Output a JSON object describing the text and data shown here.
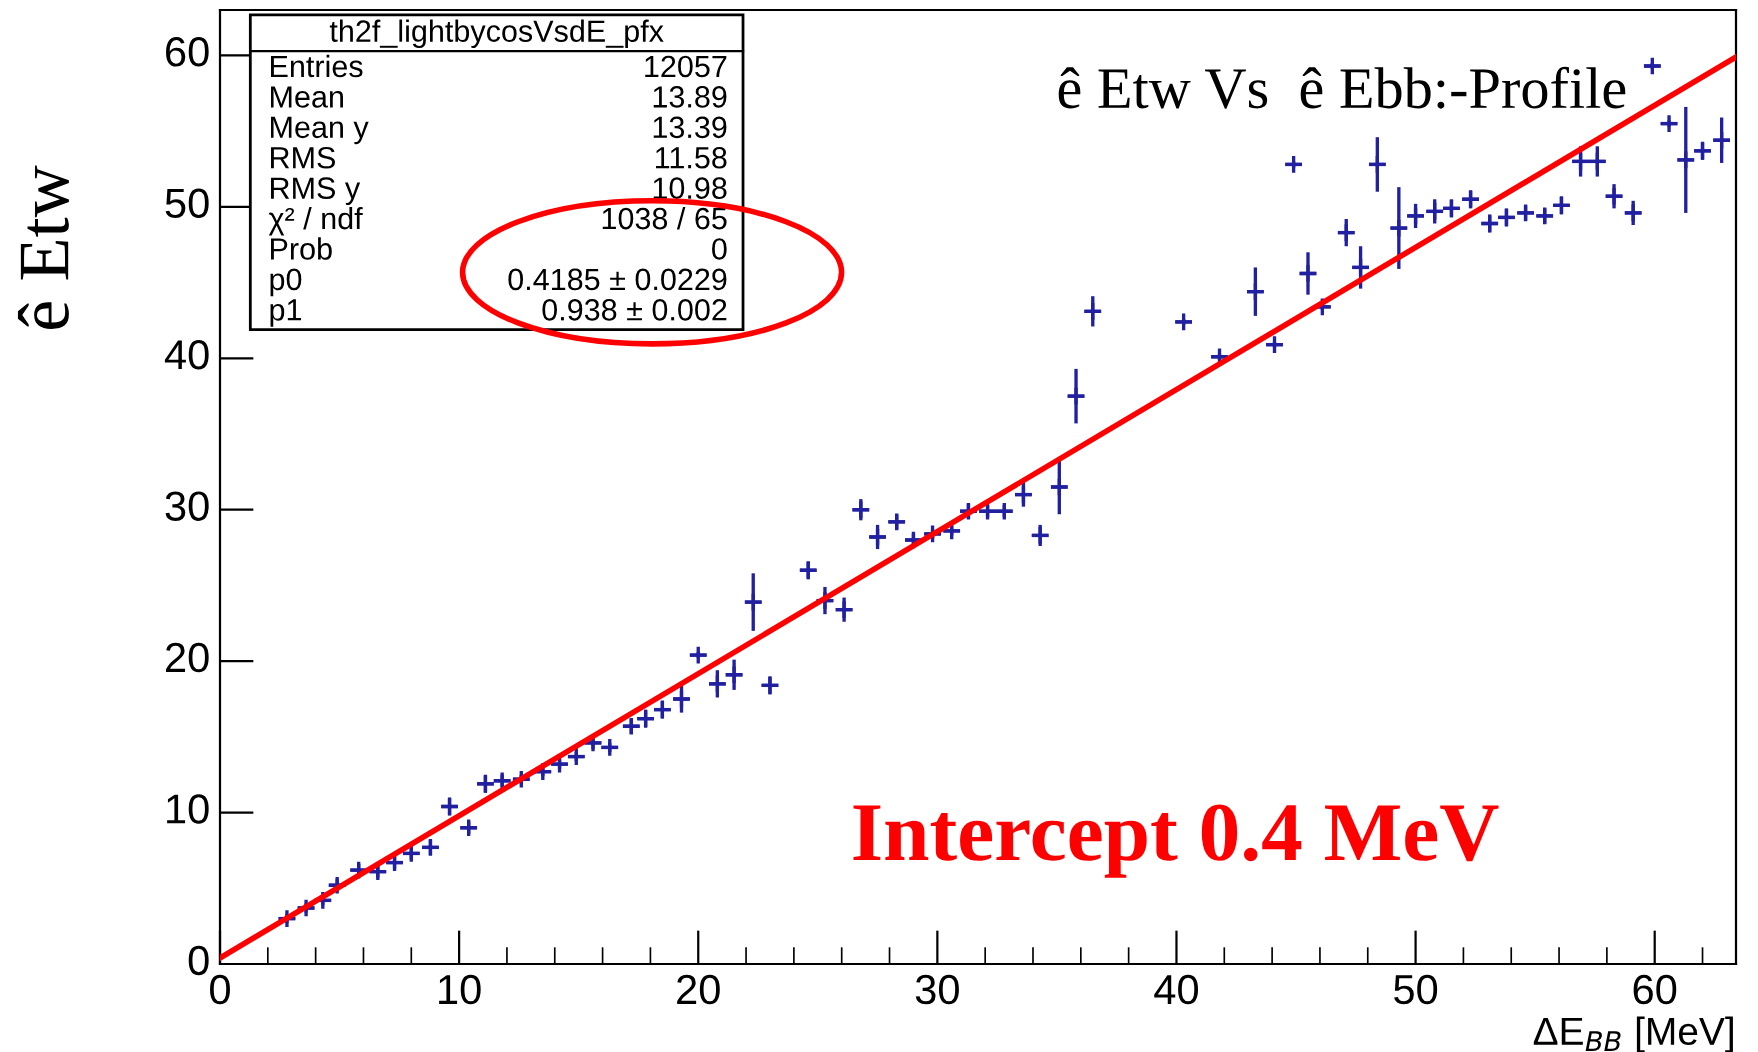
{
  "chart_data": {
    "type": "scatter",
    "title": "ê Etw Vs  ê Ebb:-Profile",
    "xlabel": "ΔE$_{BB}$ [MeV]",
    "ylabel": "ê Etw",
    "xlim": [
      0,
      63.4
    ],
    "ylim": [
      0,
      63
    ],
    "xticks": [
      0,
      10,
      20,
      30,
      40,
      50,
      60
    ],
    "yticks": [
      0,
      10,
      20,
      30,
      40,
      50,
      60
    ],
    "grid": false,
    "legend": false,
    "series": [
      {
        "color": "#2020a0",
        "marker": "cross",
        "x": [
          2.8,
          3.6,
          4.3,
          4.9,
          5.8,
          6.6,
          7.3,
          8.0,
          8.8,
          9.6,
          10.4,
          11.1,
          11.8,
          12.6,
          13.5,
          14.2,
          14.9,
          15.6,
          16.3,
          17.2,
          17.8,
          18.5,
          19.3,
          20.0,
          20.8,
          21.5,
          22.3,
          23.0,
          24.6,
          25.3,
          26.1,
          26.8,
          27.5,
          28.3,
          29.0,
          29.8,
          30.6,
          31.3,
          32.1,
          32.8,
          33.6,
          34.3,
          35.1,
          35.8,
          36.5,
          40.3,
          41.8,
          43.3,
          44.1,
          44.9,
          45.5,
          46.1,
          47.1,
          47.7,
          48.4,
          49.3,
          50.0,
          50.8,
          51.5,
          52.3,
          53.1,
          53.8,
          54.6,
          55.4,
          56.1,
          56.9,
          57.6,
          58.3,
          59.1,
          59.9,
          60.6,
          61.3,
          62.0,
          62.8
        ],
        "values": [
          3.0,
          3.7,
          4.2,
          5.2,
          6.2,
          6.1,
          6.7,
          7.3,
          7.7,
          10.4,
          9.0,
          11.9,
          12.1,
          12.2,
          12.7,
          13.2,
          13.7,
          14.6,
          14.3,
          15.7,
          16.2,
          16.8,
          17.5,
          20.4,
          18.5,
          19.1,
          23.9,
          18.4,
          26.0,
          24.0,
          23.4,
          30.0,
          28.2,
          29.2,
          28.0,
          28.4,
          28.6,
          29.9,
          29.9,
          29.9,
          31.0,
          28.3,
          31.5,
          37.5,
          43.1,
          42.4,
          40.1,
          44.4,
          40.9,
          52.8,
          45.6,
          43.4,
          48.3,
          46.0,
          52.8,
          48.6,
          49.4,
          49.7,
          49.9,
          50.5,
          48.9,
          49.3,
          49.6,
          49.4,
          50.1,
          53.0,
          53.0,
          50.7,
          49.6,
          59.3,
          55.5,
          53.1,
          53.7,
          54.4
        ],
        "errors": [
          0.3,
          0.3,
          0.3,
          0.4,
          0.4,
          0.4,
          0.4,
          0.4,
          0.5,
          0.6,
          0.4,
          0.6,
          0.4,
          0.3,
          0.3,
          0.3,
          0.3,
          0.4,
          0.3,
          0.5,
          0.6,
          0.6,
          0.9,
          0.2,
          0.9,
          1.0,
          1.9,
          0.6,
          0.6,
          0.9,
          0.8,
          0.7,
          0.8,
          0.5,
          0.4,
          0.3,
          0.3,
          0.5,
          0.4,
          0.4,
          0.8,
          0.7,
          1.8,
          1.8,
          1.0,
          0.2,
          0.2,
          1.6,
          0.2,
          0.2,
          1.4,
          0.2,
          0.9,
          1.4,
          1.8,
          2.7,
          0.8,
          0.8,
          0.6,
          0.6,
          0.6,
          0.6,
          0.5,
          0.5,
          0.6,
          1.0,
          1.0,
          0.8,
          0.8,
          0.2,
          0.2,
          3.5,
          0.6,
          1.5
        ],
        "xerrors": [
          0.35,
          0.35,
          0.35,
          0.35,
          0.35,
          0.35,
          0.35,
          0.35,
          0.35,
          0.35,
          0.35,
          0.35,
          0.35,
          0.35,
          0.35,
          0.35,
          0.35,
          0.35,
          0.35,
          0.35,
          0.35,
          0.35,
          0.35,
          0.35,
          0.35,
          0.35,
          0.35,
          0.35,
          0.35,
          0.35,
          0.35,
          0.35,
          0.35,
          0.35,
          0.35,
          0.35,
          0.35,
          0.35,
          0.35,
          0.35,
          0.35,
          0.35,
          0.35,
          0.35,
          0.35,
          0.35,
          0.35,
          0.35,
          0.35,
          0.35,
          0.35,
          0.35,
          0.35,
          0.35,
          0.35,
          0.35,
          0.35,
          0.35,
          0.35,
          0.35,
          0.35,
          0.35,
          0.35,
          0.35,
          0.35,
          0.35,
          0.35,
          0.35,
          0.35,
          0.35,
          0.35,
          0.35,
          0.35,
          0.35
        ]
      },
      {
        "type": "line",
        "color": "#ff0000",
        "x": [
          0,
          63.4
        ],
        "values": [
          0.4,
          59.9
        ]
      }
    ],
    "annotations": [
      "th2f_lightbycosVsdE_pfx",
      "Entries",
      "12057",
      "Mean",
      "13.89",
      "Mean y",
      "13.39",
      "RMS",
      "11.58",
      "RMS y",
      "10.98",
      "χ² / ndf",
      "1038 / 65",
      "Prob",
      "0",
      "p0",
      "0.4185 ± 0.0229",
      "p1",
      "0.938 ± 0.002",
      "Intercept 0.4 MeV"
    ]
  }
}
